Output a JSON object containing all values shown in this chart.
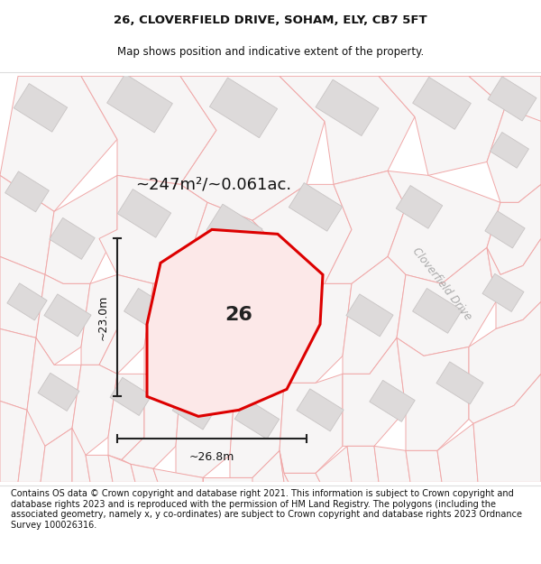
{
  "title_line1": "26, CLOVERFIELD DRIVE, SOHAM, ELY, CB7 5FT",
  "title_line2": "Map shows position and indicative extent of the property.",
  "footer_text": "Contains OS data © Crown copyright and database right 2021. This information is subject to Crown copyright and database rights 2023 and is reproduced with the permission of HM Land Registry. The polygons (including the associated geometry, namely x, y co-ordinates) are subject to Crown copyright and database rights 2023 Ordnance Survey 100026316.",
  "area_label": "~247m²/~0.061ac.",
  "number_label": "26",
  "dim_h_label": "~23.0m",
  "dim_w_label": "~26.8m",
  "road_label": "Cloverfield Drive",
  "map_bg": "#f7f5f5",
  "building_fill": "#dddada",
  "building_stroke": "#c8c4c4",
  "plot_outline_color": "#f0a8a8",
  "plot_fill": "#f7f5f5",
  "red_poly_color": "#dd0000",
  "red_poly_fill": "#fce8e8",
  "dim_line_color": "#222222",
  "title_fontsize": 9.5,
  "subtitle_fontsize": 8.5,
  "footer_fontsize": 7.0,
  "road_font_color": "#aaaaaa"
}
